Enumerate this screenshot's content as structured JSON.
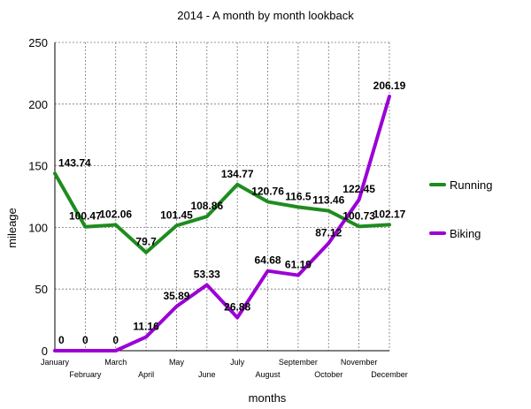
{
  "chart_data": {
    "type": "line",
    "title": "2014 - A month by month lookback",
    "xlabel": "months",
    "ylabel": "mileage",
    "ylim": [
      0,
      250
    ],
    "yticks": [
      0,
      50,
      100,
      150,
      200,
      250
    ],
    "grid": true,
    "legend_position": "right",
    "categories": [
      "January",
      "February",
      "March",
      "April",
      "May",
      "June",
      "July",
      "August",
      "September",
      "October",
      "November",
      "December"
    ],
    "series": [
      {
        "name": "Running",
        "color": "#1e8c1e",
        "values": [
          143.74,
          100.47,
          102.06,
          79.7,
          101.45,
          108.86,
          134.77,
          120.76,
          116.5,
          113.46,
          100.73,
          102.17
        ],
        "labels": [
          "143.74",
          "100.47",
          "102.06",
          "79.7",
          "101.45",
          "108.86",
          "134.77",
          "120.76",
          "116.5",
          "113.46",
          "100.73",
          "102.17"
        ]
      },
      {
        "name": "Biking",
        "color": "#9b00d6",
        "values": [
          0,
          0,
          0,
          11.16,
          35.89,
          53.33,
          26.88,
          64.68,
          61.19,
          87.12,
          122.45,
          206.19
        ],
        "labels": [
          "0",
          "0",
          "0",
          "11.16",
          "35.89",
          "53.33",
          "26.88",
          "64.68",
          "61.19",
          "87.12",
          "122.45",
          "206.19"
        ]
      }
    ]
  }
}
